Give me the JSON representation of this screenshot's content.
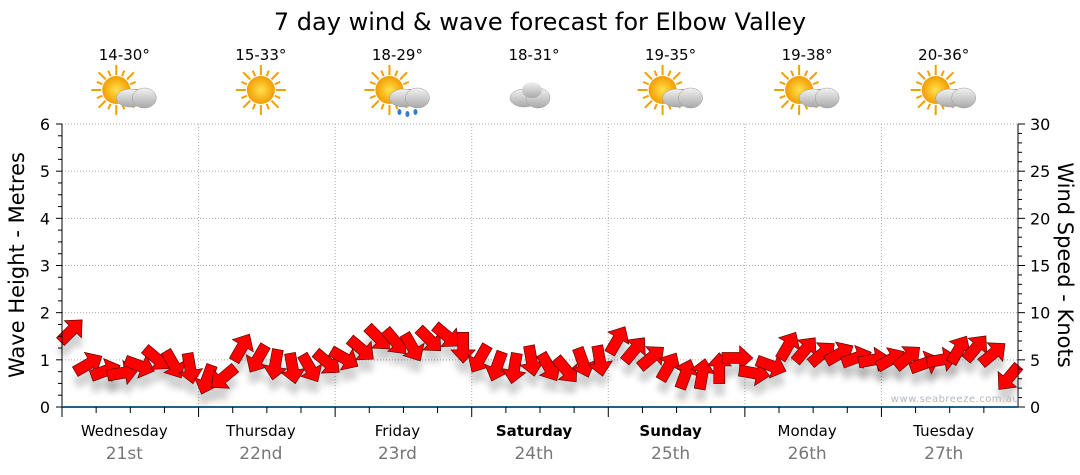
{
  "chart_data": {
    "type": "scatter",
    "title": "7 day wind & wave forecast for Elbow Valley",
    "ylabel_left": "Wave Height - Metres",
    "ylabel_right": "Wind Speed - Knots",
    "ylim_left": [
      0,
      6
    ],
    "ylim_right": [
      0,
      30
    ],
    "yticks_left": [
      "0",
      "1",
      "2",
      "3",
      "4",
      "5",
      "6"
    ],
    "yticks_right": [
      "0",
      "5",
      "10",
      "15",
      "20",
      "25",
      "30"
    ],
    "grid": true,
    "days": [
      {
        "name": "Wednesday",
        "date": "21st",
        "temp": "14-30°",
        "icon": "sun-cloud",
        "bold": false
      },
      {
        "name": "Thursday",
        "date": "22nd",
        "temp": "15-33°",
        "icon": "sun",
        "bold": false
      },
      {
        "name": "Friday",
        "date": "23rd",
        "temp": "18-29°",
        "icon": "sun-cloud-rain",
        "bold": false
      },
      {
        "name": "Saturday",
        "date": "24th",
        "temp": "18-31°",
        "icon": "cloud",
        "bold": true
      },
      {
        "name": "Sunday",
        "date": "25th",
        "temp": "19-35°",
        "icon": "sun-cloud",
        "bold": true
      },
      {
        "name": "Monday",
        "date": "26th",
        "temp": "19-38°",
        "icon": "sun-cloud",
        "bold": false
      },
      {
        "name": "Tuesday",
        "date": "27th",
        "temp": "20-36°",
        "icon": "sun-cloud",
        "bold": false
      }
    ],
    "wind_speed_knots": [
      8,
      4.5,
      3.8,
      3.6,
      4.4,
      5.2,
      4.6,
      4.2,
      3,
      3.2,
      6.2,
      5.2,
      4.6,
      4.2,
      4.2,
      4.8,
      5.2,
      6.2,
      7.4,
      7,
      6.4,
      7.2,
      7.6,
      6.4,
      5.2,
      4.4,
      4.2,
      5,
      4.3,
      4,
      4.8,
      5,
      7,
      6,
      5.2,
      4.2,
      3.4,
      3.4,
      4,
      5.2,
      3.6,
      4.4,
      6.4,
      6,
      5.6,
      5.6,
      5.2,
      5,
      5,
      5.2,
      4.6,
      5,
      6,
      6.2,
      5.6,
      3.2
    ],
    "wind_arrow_direction_deg": [
      315,
      330,
      340,
      350,
      20,
      40,
      60,
      80,
      110,
      140,
      300,
      120,
      100,
      80,
      60,
      40,
      30,
      40,
      45,
      50,
      60,
      45,
      40,
      90,
      120,
      110,
      100,
      80,
      60,
      50,
      70,
      80,
      300,
      310,
      320,
      300,
      290,
      280,
      270,
      0,
      10,
      20,
      300,
      310,
      320,
      330,
      340,
      350,
      330,
      320,
      340,
      350,
      300,
      310,
      320,
      130
    ],
    "watermark": "www.seabreeze.com.au"
  }
}
